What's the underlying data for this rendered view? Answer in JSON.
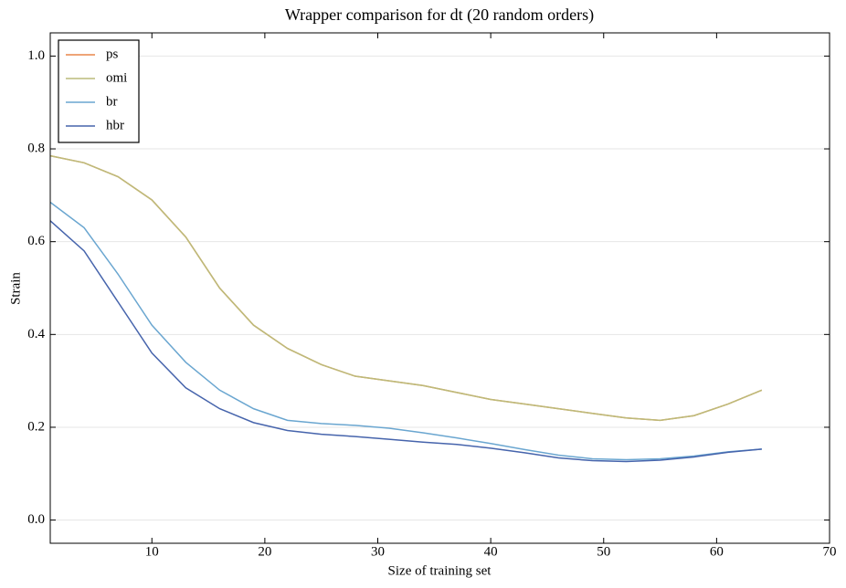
{
  "chart_data": {
    "type": "line",
    "title": "Wrapper comparison for dt (20 random orders)",
    "x_label": "Size of training set",
    "y_label": "Strain",
    "x": [
      1,
      4,
      7,
      10,
      13,
      16,
      19,
      22,
      25,
      28,
      31,
      34,
      37,
      40,
      43,
      46,
      49,
      52,
      55,
      58,
      61,
      64
    ],
    "series": [
      {
        "name": "ps",
        "color": "#e8864a",
        "values": [
          0.785,
          0.77,
          0.74,
          0.69,
          0.61,
          0.5,
          0.42,
          0.37,
          0.335,
          0.31,
          0.3,
          0.29,
          0.275,
          0.26,
          0.25,
          0.24,
          0.23,
          0.22,
          0.215,
          0.225,
          0.25,
          0.28
        ]
      },
      {
        "name": "omi",
        "color": "#bcbb7a",
        "values": [
          0.785,
          0.77,
          0.74,
          0.69,
          0.61,
          0.5,
          0.42,
          0.37,
          0.335,
          0.31,
          0.3,
          0.29,
          0.275,
          0.26,
          0.25,
          0.24,
          0.23,
          0.22,
          0.215,
          0.225,
          0.25,
          0.28
        ]
      },
      {
        "name": "br",
        "color": "#6aa6d0",
        "values": [
          0.685,
          0.63,
          0.53,
          0.42,
          0.34,
          0.28,
          0.24,
          0.215,
          0.208,
          0.204,
          0.198,
          0.188,
          0.177,
          0.165,
          0.152,
          0.14,
          0.132,
          0.13,
          0.132,
          0.138,
          0.147,
          0.153
        ]
      },
      {
        "name": "hbr",
        "color": "#4664ac",
        "values": [
          0.645,
          0.58,
          0.47,
          0.36,
          0.285,
          0.24,
          0.21,
          0.193,
          0.185,
          0.18,
          0.174,
          0.168,
          0.163,
          0.155,
          0.145,
          0.134,
          0.128,
          0.126,
          0.129,
          0.136,
          0.146,
          0.153
        ]
      }
    ],
    "xlim": [
      1,
      70
    ],
    "ylim": [
      -0.05,
      1.05
    ],
    "xticks": [
      10,
      20,
      30,
      40,
      50,
      60,
      70
    ],
    "yticks": [
      {
        "value": 0,
        "label": "0.0"
      },
      0.2,
      0.4,
      0.6,
      0.8,
      {
        "value": 1,
        "label": "1.0"
      }
    ],
    "grid": true,
    "legend": "upper-left"
  }
}
